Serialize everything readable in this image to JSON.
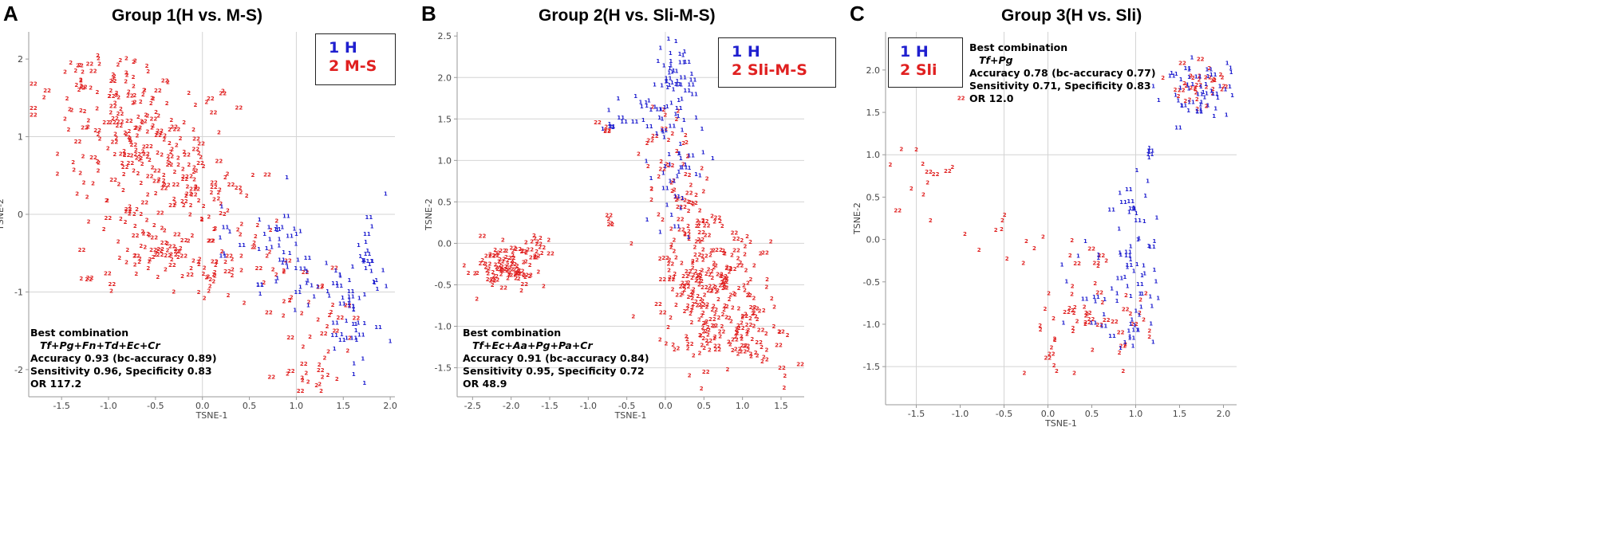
{
  "colors": {
    "h": "#1f1fcf",
    "other": "#e02020",
    "grid": "#d4d4d4",
    "axis": "#9a9a9a"
  },
  "panels": {
    "A": {
      "letter": "A",
      "title": "Group 1(H vs. M-S)",
      "legend": {
        "h": "1 H",
        "other": "2 M-S"
      },
      "note": {
        "heading": "Best combination",
        "combo": "Tf+Pg+Fn+Td+Ec+Cr",
        "accuracy": "Accuracy 0.93 (bc-accuracy 0.89)",
        "sens_spec": "Sensitivity 0.96, Specificity 0.83",
        "or": "OR 117.2"
      },
      "xlabel": "TSNE-1",
      "ylabel": "TSNE-2"
    },
    "B": {
      "letter": "B",
      "title": "Group 2(H vs. Sli-M-S)",
      "legend": {
        "h": "1 H",
        "other": "2 Sli-M-S"
      },
      "note": {
        "heading": "Best combination",
        "combo": "Tf+Ec+Aa+Pg+Pa+Cr",
        "accuracy": "Accuracy 0.91 (bc-accuracy 0.84)",
        "sens_spec": "Sensitivity 0.95, Specificity 0.72",
        "or": "OR 48.9"
      },
      "xlabel": "TSNE-1",
      "ylabel": "TSNE-2"
    },
    "C": {
      "letter": "C",
      "title": "Group 3(H vs. Sli)",
      "legend": {
        "h": "1 H",
        "other": "2 Sli"
      },
      "note": {
        "heading": "Best combination",
        "combo": "Tf+Pg",
        "accuracy": "Accuracy 0.78 (bc-accuracy 0.77)",
        "sens_spec": "Sensitivity 0.71, Specificity 0.83",
        "or": "OR 12.0"
      },
      "xlabel": "TSNE-1",
      "ylabel": "TSNE-2"
    }
  },
  "chart_data": [
    {
      "type": "scatter",
      "title": "Group 1(H vs. M-S)",
      "xlabel": "TSNE-1",
      "ylabel": "TSNE-2",
      "xlim": [
        -1.85,
        2.05
      ],
      "ylim": [
        -2.35,
        2.35
      ],
      "xticks": [
        "-1.5",
        "-1.0",
        "-0.5",
        "0.0",
        "0.5",
        "1.0",
        "1.5",
        "2.0"
      ],
      "xtick_values": [
        -1.5,
        -1.0,
        -0.5,
        0.0,
        0.5,
        1.0,
        1.5,
        2.0
      ],
      "yticks": [
        "-2",
        "-1",
        "0",
        "1",
        "2"
      ],
      "ytick_values": [
        -2,
        -1,
        0,
        1,
        2
      ],
      "xgrid": [
        0,
        1
      ],
      "ygrid": [
        1,
        0,
        -1
      ],
      "series": [
        {
          "name": "2 M-S",
          "marker": "2",
          "clusters": [
            {
              "cx": -0.8,
              "cy": 1.0,
              "sx": 0.42,
              "sy": 0.45,
              "n": 160
            },
            {
              "cx": -1.0,
              "cy": 1.7,
              "sx": 0.3,
              "sy": 0.18,
              "n": 30
            },
            {
              "cx": -0.4,
              "cy": 0.1,
              "sx": 0.4,
              "sy": 0.4,
              "n": 80
            },
            {
              "cx": 0.0,
              "cy": 0.3,
              "sx": 0.22,
              "sy": 0.38,
              "n": 40
            },
            {
              "cx": -0.6,
              "cy": -0.6,
              "sx": 0.35,
              "sy": 0.25,
              "n": 45
            },
            {
              "cx": 0.1,
              "cy": -0.75,
              "sx": 0.2,
              "sy": 0.2,
              "n": 28
            },
            {
              "cx": 0.75,
              "cy": -0.7,
              "sx": 0.22,
              "sy": 0.3,
              "n": 20
            },
            {
              "cx": 1.3,
              "cy": -1.5,
              "sx": 0.22,
              "sy": 0.45,
              "n": 28
            },
            {
              "cx": 1.1,
              "cy": -2.05,
              "sx": 0.25,
              "sy": 0.12,
              "n": 12
            }
          ]
        },
        {
          "name": "1 H",
          "marker": "1",
          "clusters": [
            {
              "cx": 0.75,
              "cy": -0.35,
              "sx": 0.15,
              "sy": 0.35,
              "n": 32
            },
            {
              "cx": 1.1,
              "cy": -0.8,
              "sx": 0.1,
              "sy": 0.2,
              "n": 12
            },
            {
              "cx": 1.55,
              "cy": -1.25,
              "sx": 0.13,
              "sy": 0.4,
              "n": 45
            },
            {
              "cx": 1.8,
              "cy": -0.6,
              "sx": 0.08,
              "sy": 0.35,
              "n": 22
            },
            {
              "cx": 0.25,
              "cy": -0.3,
              "sx": 0.08,
              "sy": 0.2,
              "n": 6
            }
          ]
        }
      ]
    },
    {
      "type": "scatter",
      "title": "Group 2(H vs. Sli-M-S)",
      "xlabel": "TSNE-1",
      "ylabel": "TSNE-2",
      "xlim": [
        -2.7,
        1.8
      ],
      "ylim": [
        -1.85,
        2.55
      ],
      "xticks": [
        "-2.5",
        "-2.0",
        "-1.5",
        "-1.0",
        "-0.5",
        "0.0",
        "0.5",
        "1.0",
        "1.5"
      ],
      "xtick_values": [
        -2.5,
        -2.0,
        -1.5,
        -1.0,
        -0.5,
        0.0,
        0.5,
        1.0,
        1.5
      ],
      "yticks": [
        "-1.5",
        "-1.0",
        "-0.5",
        "0.0",
        "0.5",
        "1.0",
        "1.5",
        "2.0",
        "2.5"
      ],
      "ytick_values": [
        -1.5,
        -1.0,
        -0.5,
        0.0,
        0.5,
        1.0,
        1.5,
        2.0,
        2.5
      ],
      "xgrid": [
        0
      ],
      "ygrid": [
        2.0,
        1.5,
        1.0,
        0.5,
        0.0,
        -0.5,
        -1.0,
        -1.5
      ],
      "series": [
        {
          "name": "2 Sli-M-S",
          "marker": "2",
          "clusters": [
            {
              "cx": -2.05,
              "cy": -0.3,
              "sx": 0.22,
              "sy": 0.13,
              "n": 95
            },
            {
              "cx": -1.65,
              "cy": -0.05,
              "sx": 0.12,
              "sy": 0.08,
              "n": 14
            },
            {
              "cx": 0.5,
              "cy": -0.35,
              "sx": 0.35,
              "sy": 0.35,
              "n": 150
            },
            {
              "cx": 0.8,
              "cy": -1.05,
              "sx": 0.38,
              "sy": 0.3,
              "n": 140
            },
            {
              "cx": 0.2,
              "cy": 0.6,
              "sx": 0.22,
              "sy": 0.35,
              "n": 45
            },
            {
              "cx": -0.1,
              "cy": 1.3,
              "sx": 0.2,
              "sy": 0.2,
              "n": 14
            },
            {
              "cx": -0.72,
              "cy": 0.25,
              "sx": 0.03,
              "sy": 0.03,
              "n": 4
            },
            {
              "cx": -0.8,
              "cy": 1.35,
              "sx": 0.06,
              "sy": 0.05,
              "n": 4
            }
          ]
        },
        {
          "name": "1 H",
          "marker": "1",
          "clusters": [
            {
              "cx": 0.1,
              "cy": 2.0,
              "sx": 0.15,
              "sy": 0.22,
              "n": 40
            },
            {
              "cx": -0.2,
              "cy": 1.55,
              "sx": 0.25,
              "sy": 0.12,
              "n": 24
            },
            {
              "cx": 0.15,
              "cy": 1.05,
              "sx": 0.2,
              "sy": 0.25,
              "n": 30
            },
            {
              "cx": 0.05,
              "cy": 0.45,
              "sx": 0.15,
              "sy": 0.2,
              "n": 12
            },
            {
              "cx": -0.72,
              "cy": 1.4,
              "sx": 0.04,
              "sy": 0.05,
              "n": 4
            }
          ]
        }
      ]
    },
    {
      "type": "scatter",
      "title": "Group 3(H vs. Sli)",
      "xlabel": "TSNE-1",
      "ylabel": "TSNE-2",
      "xlim": [
        -1.85,
        2.15
      ],
      "ylim": [
        -1.95,
        2.45
      ],
      "xticks": [
        "-1.5",
        "-1.0",
        "-0.5",
        "0.0",
        "0.5",
        "1.0",
        "1.5",
        "2.0"
      ],
      "xtick_values": [
        -1.5,
        -1.0,
        -0.5,
        0.0,
        0.5,
        1.0,
        1.5,
        2.0
      ],
      "yticks": [
        "-1.5",
        "-1.0",
        "-0.5",
        "0.0",
        "0.5",
        "1.0",
        "1.5",
        "2.0"
      ],
      "ytick_values": [
        -1.5,
        -1.0,
        -0.5,
        0.0,
        0.5,
        1.0,
        1.5,
        2.0
      ],
      "xgrid": [
        -1.5,
        -0.5,
        0.0,
        1.0
      ],
      "ygrid": [
        1.0,
        -1.5
      ],
      "series": [
        {
          "name": "2 Sli",
          "marker": "2",
          "clusters": [
            {
              "cx": 1.75,
              "cy": 1.8,
              "sx": 0.2,
              "sy": 0.15,
              "n": 35
            },
            {
              "cx": -1.4,
              "cy": 0.75,
              "sx": 0.22,
              "sy": 0.35,
              "n": 14
            },
            {
              "cx": -0.5,
              "cy": -0.1,
              "sx": 0.35,
              "sy": 0.3,
              "n": 12
            },
            {
              "cx": 0.55,
              "cy": -0.9,
              "sx": 0.35,
              "sy": 0.35,
              "n": 50
            },
            {
              "cx": 0.1,
              "cy": -1.35,
              "sx": 0.2,
              "sy": 0.15,
              "n": 10
            }
          ]
        },
        {
          "name": "1 H",
          "marker": "1",
          "clusters": [
            {
              "cx": 1.7,
              "cy": 1.75,
              "sx": 0.2,
              "sy": 0.18,
              "n": 50
            },
            {
              "cx": 1.15,
              "cy": 1.0,
              "sx": 0.03,
              "sy": 0.05,
              "n": 5
            },
            {
              "cx": 1.0,
              "cy": 0.0,
              "sx": 0.12,
              "sy": 0.4,
              "n": 40
            },
            {
              "cx": 0.9,
              "cy": -0.85,
              "sx": 0.2,
              "sy": 0.3,
              "n": 32
            },
            {
              "cx": 0.3,
              "cy": -0.6,
              "sx": 0.2,
              "sy": 0.25,
              "n": 10
            }
          ]
        }
      ]
    }
  ]
}
